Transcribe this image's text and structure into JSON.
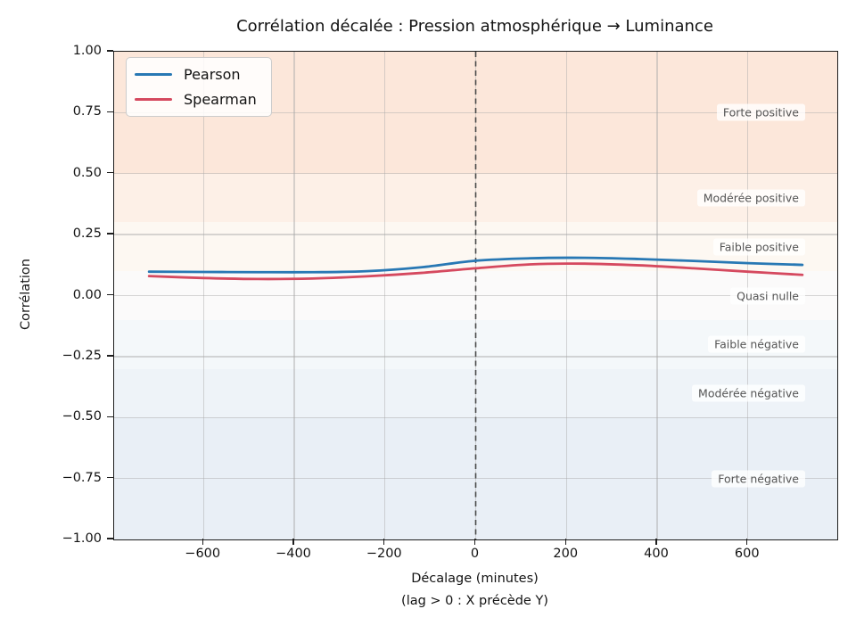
{
  "title": "Corrélation décalée : Pression atmosphérique → Luminance",
  "axes": {
    "ylabel": "Corrélation",
    "xlabel_line1": "Décalage (minutes)",
    "xlabel_line2": "(lag > 0 : X précède Y)"
  },
  "chart_data": {
    "type": "line",
    "title": "Corrélation décalée : Pression atmosphérique → Luminance",
    "xlabel": "Décalage (minutes) (lag > 0 : X précède Y)",
    "ylabel": "Corrélation",
    "xlim": [
      -797,
      797
    ],
    "ylim": [
      -1.0,
      1.0
    ],
    "xticks": [
      -600,
      -400,
      -200,
      0,
      200,
      400,
      600
    ],
    "yticks": [
      1.0,
      0.75,
      0.5,
      0.25,
      0.0,
      -0.25,
      -0.5,
      -0.75,
      -1.0
    ],
    "grid": true,
    "legend_position": "upper left",
    "x": [
      -720,
      -600,
      -480,
      -360,
      -240,
      -120,
      0,
      120,
      240,
      360,
      480,
      600,
      720
    ],
    "series": [
      {
        "name": "Pearson",
        "color": "#2878b4",
        "values": [
          0.098,
          0.097,
          0.096,
          0.096,
          0.1,
          0.116,
          0.143,
          0.153,
          0.155,
          0.15,
          0.142,
          0.133,
          0.126
        ]
      },
      {
        "name": "Spearman",
        "color": "#d5495f",
        "values": [
          0.08,
          0.072,
          0.068,
          0.07,
          0.079,
          0.093,
          0.112,
          0.128,
          0.131,
          0.124,
          0.112,
          0.098,
          0.085
        ]
      }
    ],
    "vline": {
      "x": 0,
      "style": "dashed",
      "color": "#4a4a4a"
    },
    "bands": [
      {
        "label": "Forte positive",
        "from": 0.5,
        "to": 1.0,
        "label_at": 0.75,
        "color": "#fce7da"
      },
      {
        "label": "Modérée positive",
        "from": 0.3,
        "to": 0.5,
        "label_at": 0.4,
        "color": "#fdf0e7"
      },
      {
        "label": "Faible positive",
        "from": 0.1,
        "to": 0.3,
        "label_at": 0.2,
        "color": "#fdf8f2"
      },
      {
        "label": "Quasi nulle",
        "from": -0.1,
        "to": 0.1,
        "label_at": 0.0,
        "color": "#fbfafa"
      },
      {
        "label": "Faible négative",
        "from": -0.3,
        "to": -0.1,
        "label_at": -0.2,
        "color": "#f4f8fa"
      },
      {
        "label": "Modérée négative",
        "from": -0.5,
        "to": -0.3,
        "label_at": -0.4,
        "color": "#eef3f8"
      },
      {
        "label": "Forte négative",
        "from": -1.0,
        "to": -0.5,
        "label_at": -0.75,
        "color": "#e9eff6"
      }
    ]
  }
}
